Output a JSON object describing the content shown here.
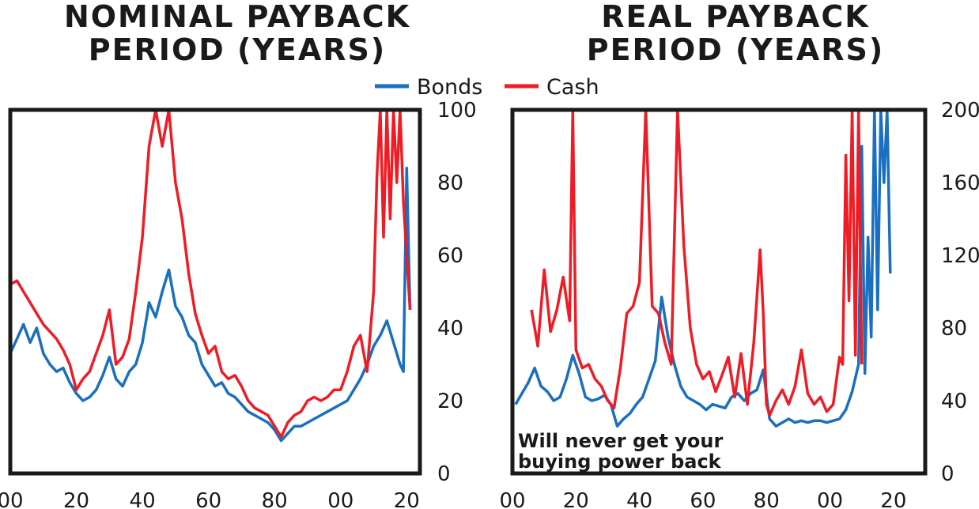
{
  "titles": {
    "left": "NOMINAL PAYBACK PERIOD (YEARS)",
    "right": "REAL PAYBACK PERIOD (YEARS)"
  },
  "legend": {
    "bonds": "Bonds",
    "cash": "Cash"
  },
  "annotation": "Will never get your buying power back",
  "colors": {
    "bonds": "#1a6fc0",
    "cash": "#ee1c25",
    "frame": "#1a1a1a"
  },
  "chart_data": [
    {
      "type": "line",
      "title": "NOMINAL PAYBACK PERIOD (YEARS)",
      "x_ticks": [
        "00",
        "20",
        "40",
        "60",
        "80",
        "00",
        "20"
      ],
      "x_tick_years": [
        1900,
        1920,
        1940,
        1960,
        1980,
        2000,
        2020
      ],
      "xlim": [
        1900,
        2024
      ],
      "ylim": [
        0,
        100
      ],
      "y_ticks": [
        0,
        20,
        40,
        60,
        80,
        100
      ],
      "y_axis_side": "right",
      "legend_position": "top-center",
      "series": [
        {
          "name": "Bonds",
          "x": [
            1900,
            1902,
            1904,
            1906,
            1908,
            1910,
            1912,
            1914,
            1916,
            1918,
            1920,
            1922,
            1924,
            1926,
            1928,
            1930,
            1932,
            1934,
            1936,
            1938,
            1940,
            1942,
            1944,
            1946,
            1948,
            1950,
            1952,
            1954,
            1956,
            1958,
            1960,
            1962,
            1964,
            1966,
            1968,
            1970,
            1972,
            1974,
            1976,
            1978,
            1980,
            1982,
            1984,
            1986,
            1988,
            1990,
            1992,
            1994,
            1996,
            1998,
            2000,
            2002,
            2004,
            2006,
            2008,
            2010,
            2012,
            2014,
            2016,
            2018,
            2019,
            2020,
            2021
          ],
          "y": [
            33,
            37,
            41,
            36,
            40,
            33,
            30,
            28,
            29,
            25,
            22,
            20,
            21,
            23,
            27,
            32,
            26,
            24,
            28,
            30,
            36,
            47,
            43,
            50,
            56,
            46,
            43,
            38,
            36,
            30,
            27,
            24,
            25,
            22,
            21,
            19,
            17,
            16,
            15,
            14,
            12,
            9,
            11,
            13,
            13,
            14,
            15,
            16,
            17,
            18,
            19,
            20,
            23,
            26,
            30,
            35,
            38,
            42,
            36,
            30,
            28,
            84,
            45
          ]
        },
        {
          "name": "Cash",
          "x": [
            1900,
            1902,
            1904,
            1906,
            1908,
            1910,
            1912,
            1914,
            1916,
            1918,
            1920,
            1922,
            1924,
            1926,
            1928,
            1930,
            1932,
            1934,
            1936,
            1938,
            1940,
            1942,
            1944,
            1946,
            1948,
            1950,
            1952,
            1954,
            1956,
            1958,
            1960,
            1962,
            1964,
            1966,
            1968,
            1970,
            1972,
            1974,
            1976,
            1978,
            1980,
            1982,
            1984,
            1986,
            1988,
            1990,
            1992,
            1994,
            1996,
            1998,
            2000,
            2002,
            2004,
            2006,
            2008,
            2010,
            2011,
            2012,
            2013,
            2014,
            2015,
            2016,
            2017,
            2018,
            2019,
            2020,
            2021
          ],
          "y": [
            52,
            53,
            50,
            47,
            44,
            41,
            39,
            37,
            34,
            30,
            23,
            26,
            28,
            33,
            38,
            45,
            30,
            32,
            37,
            50,
            65,
            90,
            100,
            90,
            100,
            80,
            70,
            55,
            44,
            38,
            33,
            35,
            28,
            26,
            27,
            24,
            20,
            18,
            17,
            16,
            13,
            10,
            14,
            16,
            17,
            20,
            21,
            20,
            21,
            23,
            23,
            28,
            35,
            38,
            28,
            50,
            82,
            100,
            65,
            100,
            70,
            100,
            80,
            100,
            75,
            60,
            45
          ]
        }
      ]
    },
    {
      "type": "line",
      "title": "REAL PAYBACK PERIOD (YEARS)",
      "x_ticks": [
        "00",
        "20",
        "40",
        "60",
        "80",
        "00",
        "20"
      ],
      "x_tick_years": [
        1900,
        1920,
        1940,
        1960,
        1980,
        2000,
        2020
      ],
      "xlim": [
        1900,
        2030
      ],
      "ylim": [
        0,
        200
      ],
      "y_ticks": [
        0,
        40,
        80,
        120,
        160,
        200
      ],
      "y_axis_side": "right",
      "series": [
        {
          "name": "Bonds",
          "x": [
            1901,
            1903,
            1905,
            1907,
            1909,
            1911,
            1913,
            1915,
            1917,
            1919,
            1921,
            1923,
            1925,
            1927,
            1929,
            1931,
            1933,
            1935,
            1937,
            1939,
            1941,
            1943,
            1945,
            1947,
            1949,
            1951,
            1953,
            1955,
            1957,
            1959,
            1961,
            1963,
            1965,
            1967,
            1969,
            1971,
            1973,
            1975,
            1977,
            1979,
            1981,
            1983,
            1985,
            1987,
            1989,
            1991,
            1993,
            1995,
            1997,
            1999,
            2001,
            2003,
            2005,
            2007,
            2009,
            2010,
            2011,
            2012,
            2013,
            2014,
            2015,
            2016,
            2017,
            2018,
            2019
          ],
          "y": [
            38,
            44,
            50,
            58,
            48,
            45,
            40,
            42,
            52,
            65,
            55,
            42,
            40,
            41,
            43,
            38,
            26,
            30,
            33,
            38,
            42,
            52,
            62,
            97,
            75,
            60,
            48,
            42,
            40,
            38,
            35,
            38,
            37,
            36,
            42,
            44,
            40,
            44,
            46,
            57,
            30,
            26,
            28,
            30,
            28,
            29,
            28,
            29,
            29,
            28,
            29,
            30,
            35,
            45,
            60,
            180,
            55,
            130,
            75,
            200,
            90,
            200,
            160,
            200,
            110
          ]
        },
        {
          "name": "Cash",
          "x": [
            1906,
            1908,
            1910,
            1912,
            1914,
            1916,
            1918,
            1919,
            1920,
            1922,
            1924,
            1926,
            1928,
            1930,
            1932,
            1934,
            1936,
            1938,
            1940,
            1942,
            1944,
            1946,
            1948,
            1950,
            1952,
            1954,
            1956,
            1958,
            1960,
            1962,
            1964,
            1966,
            1968,
            1970,
            1972,
            1974,
            1976,
            1978,
            1979,
            1980,
            1981,
            1983,
            1985,
            1987,
            1989,
            1991,
            1993,
            1995,
            1997,
            1999,
            2001,
            2003,
            2004,
            2005,
            2006,
            2007,
            2008,
            2009,
            2010
          ],
          "y": [
            90,
            70,
            112,
            78,
            90,
            108,
            84,
            200,
            68,
            58,
            60,
            52,
            48,
            40,
            36,
            58,
            88,
            92,
            105,
            200,
            92,
            88,
            72,
            60,
            200,
            125,
            80,
            60,
            52,
            56,
            45,
            54,
            64,
            42,
            66,
            38,
            72,
            123,
            88,
            38,
            32,
            40,
            46,
            38,
            48,
            68,
            44,
            38,
            42,
            34,
            38,
            64,
            60,
            175,
            95,
            200,
            65,
            200,
            60
          ]
        }
      ]
    }
  ]
}
